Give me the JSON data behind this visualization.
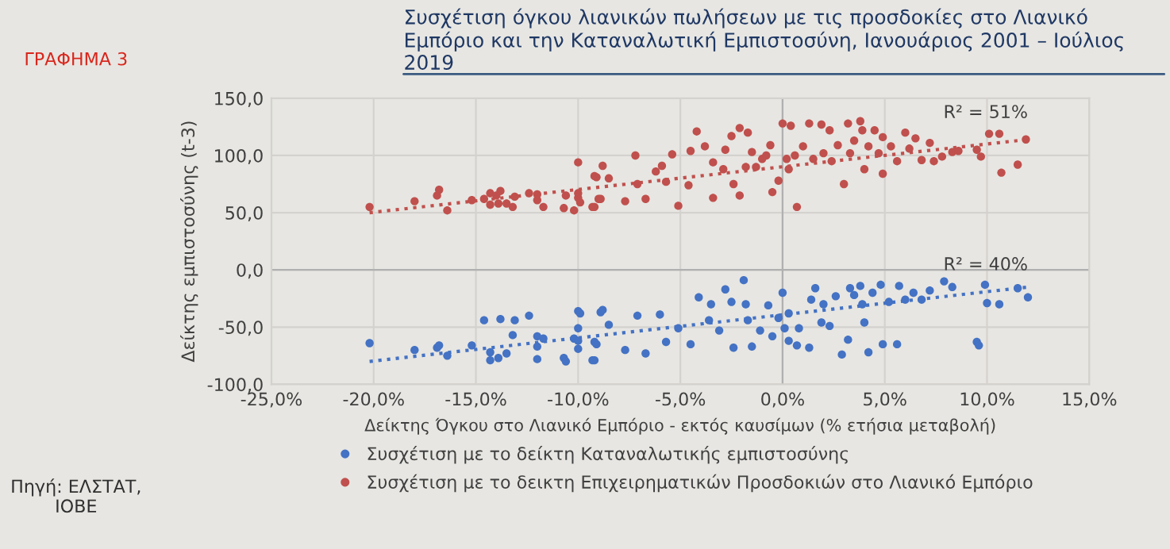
{
  "chart_data": {
    "type": "scatter",
    "title": "Συσχέτιση όγκου λιανικών πωλήσεων με τις προσδοκίες στο Λιανικό Εμπόριο και την Καταναλωτική Εμπιστοσύνη, Ιανουάριος 2001 – Ιούλιος 2019",
    "xlabel": "Δείκτης Όγκου στο Λιανικό Εμπόριο - εκτός καυσίμων (% ετήσια μεταβολή)",
    "ylabel": "Δείκτης εμπιστοσύνης (t-3)",
    "annotations": [
      "ΓΡΑΦΗΜΑ 3",
      "Πηγή: ΕΛΣΤΑΤ, ΙΟΒΕ",
      {
        "text": "R² = 51%",
        "x": 12,
        "y": 118
      },
      {
        "text": "R² = 40%",
        "x": 12,
        "y": -15
      }
    ],
    "xlim": [
      -25,
      15
    ],
    "ylim": [
      -100,
      150
    ],
    "xticks": [
      {
        "value": -25,
        "label": "-25,0%"
      },
      {
        "value": -20,
        "label": "-20,0%"
      },
      {
        "value": -15,
        "label": "-15,0%"
      },
      {
        "value": -10,
        "label": "-10,0%"
      },
      {
        "value": -5,
        "label": "-5,0%"
      },
      {
        "value": 0,
        "label": "0,0%"
      },
      {
        "value": 5,
        "label": "5,0%"
      },
      {
        "value": 10,
        "label": "10,0%"
      },
      {
        "value": 15,
        "label": "15,0%"
      }
    ],
    "yticks": [
      {
        "value": -100,
        "label": "-100,0"
      },
      {
        "value": -50,
        "label": "-50,0"
      },
      {
        "value": 0,
        "label": "0,0"
      },
      {
        "value": 50,
        "label": "50,0"
      },
      {
        "value": 100,
        "label": "100,0"
      },
      {
        "value": 150,
        "label": "150,0"
      }
    ],
    "grid": true,
    "legend": "bottom",
    "marker": "circle",
    "series": [
      {
        "name": "Συσχέτιση με το δείκτη Καταναλωτικής εμπιστοσύνης",
        "color": "#4472c4",
        "x": [
          -20.2,
          -18,
          -16.9,
          -16.8,
          -16.4,
          -15.2,
          -14.6,
          -14.3,
          -14.3,
          -13.9,
          -13.8,
          -13.5,
          -13.2,
          -13.1,
          -12.4,
          -12,
          -12,
          -12,
          -11.7,
          -10.7,
          -10.6,
          -10.2,
          -10,
          -9.9,
          -10,
          -10,
          -10,
          -9.2,
          -9.1,
          -8.9,
          -9.2,
          -8.8,
          -8.5,
          -9.3,
          -7.7,
          -7.1,
          -6.7,
          -6,
          -5.7,
          -5.1,
          -4.5,
          -4.1,
          -3.6,
          -3.5,
          -3.1,
          -2.8,
          -2.5,
          -2.4,
          -1.9,
          -1.8,
          -1.7,
          -1.5,
          -1.1,
          -0.7,
          -0.5,
          -0.2,
          0,
          0.1,
          0.3,
          0.3,
          0.7,
          0.8,
          1.3,
          1.4,
          1.6,
          1.9,
          2,
          2.3,
          2.6,
          2.9,
          3.2,
          3.3,
          3.5,
          3.8,
          3.9,
          4,
          4.2,
          4.4,
          4.8,
          4.9,
          5.2,
          5.6,
          5.7,
          6,
          6.4,
          6.8,
          7.2,
          7.9,
          8.3,
          9.5,
          9.6,
          9.9,
          10,
          10.6,
          11.5,
          12
        ],
        "values": [
          -64,
          -70,
          -68,
          -66,
          -75,
          -66,
          -44,
          -72,
          -79,
          -77,
          -43,
          -73,
          -57,
          -44,
          -40,
          -58,
          -67,
          -78,
          -60,
          -77,
          -80,
          -60,
          -36,
          -38,
          -51,
          -62,
          -69,
          -79,
          -65,
          -37,
          -63,
          -35,
          -48,
          -79,
          -70,
          -40,
          -73,
          -39,
          -63,
          -51,
          -65,
          -24,
          -44,
          -30,
          -53,
          -17,
          -28,
          -68,
          -9,
          -30,
          -44,
          -67,
          -53,
          -31,
          -58,
          -42,
          -20,
          -51,
          -62,
          -38,
          -66,
          -51,
          -68,
          -26,
          -16,
          -46,
          -30,
          -49,
          -23,
          -74,
          -61,
          -16,
          -22,
          -14,
          -30,
          -46,
          -72,
          -20,
          -13,
          -65,
          -28,
          -65,
          -14,
          -26,
          -20,
          -26,
          -18,
          -10,
          -15,
          -63,
          -66,
          -13,
          -29,
          -30,
          -16,
          -24
        ]
      },
      {
        "name": "Συσχέτιση με το δεικτη Επιχειρηματικών Προσδοκιών στο Λιανικό Εμπόριο",
        "color": "#c0504d",
        "x": [
          -20.2,
          -18,
          -16.9,
          -16.8,
          -16.4,
          -15.2,
          -14.6,
          -14.3,
          -14.3,
          -14,
          -13.8,
          -13.9,
          -13.5,
          -13.2,
          -13.1,
          -12.4,
          -12,
          -12,
          -11.7,
          -10.7,
          -10.6,
          -10.2,
          -10,
          -10,
          -10,
          -9.9,
          -9.2,
          -9.1,
          -8.8,
          -9,
          -9.2,
          -8.5,
          -9.3,
          -8.9,
          -7.7,
          -7.2,
          -7.1,
          -6.7,
          -6.2,
          -5.9,
          -5.7,
          -5.4,
          -5.1,
          -4.6,
          -4.5,
          -4.2,
          -3.8,
          -3.4,
          -3.4,
          -2.9,
          -2.8,
          -2.5,
          -2.4,
          -2.1,
          -2.1,
          -1.7,
          -1.8,
          -1.5,
          -1.3,
          -1,
          -0.8,
          -0.6,
          -0.5,
          -0.2,
          0,
          0.2,
          0.3,
          0.4,
          0.7,
          0.6,
          1,
          1.3,
          1.5,
          1.9,
          2,
          2.3,
          2.4,
          2.7,
          3,
          3.2,
          3.3,
          3.5,
          3.8,
          3.9,
          4,
          4.2,
          4.5,
          4.7,
          4.9,
          4.9,
          5.3,
          5.6,
          6,
          6.2,
          6.5,
          6.8,
          7.2,
          7.4,
          7.8,
          8.3,
          8.6,
          9.5,
          9.7,
          10.1,
          10.6,
          10.7,
          11.5,
          11.9
        ],
        "values": [
          55,
          60,
          65,
          70,
          52,
          61,
          62,
          67,
          57,
          65,
          69,
          58,
          58,
          55,
          64,
          67,
          66,
          61,
          55,
          54,
          65,
          52,
          94,
          63,
          67,
          59,
          55,
          81,
          91,
          62,
          82,
          80,
          55,
          62,
          60,
          100,
          75,
          62,
          86,
          91,
          77,
          101,
          56,
          74,
          104,
          121,
          108,
          94,
          63,
          88,
          105,
          117,
          75,
          124,
          65,
          120,
          90,
          103,
          90,
          97,
          100,
          109,
          68,
          78,
          128,
          97,
          88,
          126,
          55,
          100,
          108,
          128,
          97,
          127,
          102,
          122,
          95,
          109,
          75,
          128,
          102,
          113,
          130,
          122,
          88,
          108,
          122,
          102,
          116,
          84,
          108,
          95,
          120,
          106,
          115,
          96,
          111,
          95,
          99,
          103,
          104,
          105,
          99,
          119,
          119,
          85,
          92,
          114
        ]
      },
      {
        "type": "line",
        "line_style": "dotted",
        "marker": "none",
        "color": "#4472c4",
        "x": [
          -20.2,
          12
        ],
        "values": [
          -80,
          -15
        ]
      },
      {
        "type": "line",
        "line_style": "dotted",
        "marker": "none",
        "color": "#c0504d",
        "x": [
          -20.2,
          12
        ],
        "values": [
          50,
          114
        ]
      }
    ]
  }
}
